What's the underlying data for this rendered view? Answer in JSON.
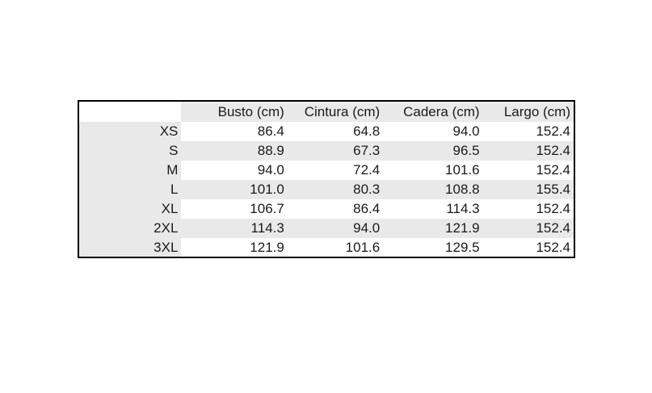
{
  "page": {
    "background": "#ffffff"
  },
  "colors": {
    "stripe": "#e9e9e9",
    "border": "#000000",
    "text": "#1a1a1a",
    "background": "#ffffff"
  },
  "table": {
    "corner_label": "",
    "columns": [
      "Busto (cm)",
      "Cintura (cm)",
      "Cadera (cm)",
      "Largo (cm)"
    ],
    "rows": [
      {
        "label": "XS",
        "values": [
          "86.4",
          "64.8",
          "94.0",
          "152.4"
        ]
      },
      {
        "label": "S",
        "values": [
          "88.9",
          "67.3",
          "96.5",
          "152.4"
        ]
      },
      {
        "label": "M",
        "values": [
          "94.0",
          "72.4",
          "101.6",
          "152.4"
        ]
      },
      {
        "label": "L",
        "values": [
          "101.0",
          "80.3",
          "108.8",
          "155.4"
        ]
      },
      {
        "label": "XL",
        "values": [
          "106.7",
          "86.4",
          "114.3",
          "152.4"
        ]
      },
      {
        "label": "2XL",
        "values": [
          "114.3",
          "94.0",
          "121.9",
          "152.4"
        ]
      },
      {
        "label": "3XL",
        "values": [
          "121.9",
          "101.6",
          "129.5",
          "152.4"
        ]
      }
    ]
  },
  "chart_data": {
    "type": "table",
    "columns": [
      "",
      "Busto (cm)",
      "Cintura (cm)",
      "Cadera (cm)",
      "Largo (cm)"
    ],
    "rows": [
      [
        "XS",
        86.4,
        64.8,
        94.0,
        152.4
      ],
      [
        "S",
        88.9,
        67.3,
        96.5,
        152.4
      ],
      [
        "M",
        94.0,
        72.4,
        101.6,
        152.4
      ],
      [
        "L",
        101.0,
        80.3,
        108.8,
        155.4
      ],
      [
        "XL",
        106.7,
        86.4,
        114.3,
        152.4
      ],
      [
        "2XL",
        114.3,
        94.0,
        121.9,
        152.4
      ],
      [
        "3XL",
        121.9,
        101.6,
        129.5,
        152.4
      ]
    ]
  }
}
